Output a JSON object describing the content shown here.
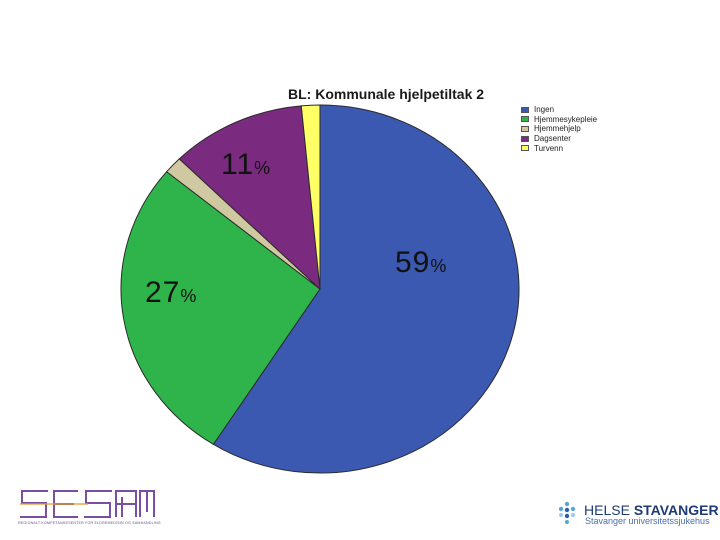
{
  "chart_data": {
    "type": "pie",
    "title": "BL: Kommunale hjelpetiltak 2",
    "categories": [
      "Ingen",
      "Hjemmesykepleie",
      "Hjemmehjelp",
      "Dagsenter",
      "Turvenn"
    ],
    "values": [
      59,
      27,
      1.5,
      11,
      1.5
    ],
    "colors": [
      "#3b59b0",
      "#2eb44a",
      "#cfc8a0",
      "#7b2b7f",
      "#ffff66"
    ],
    "data_labels": [
      {
        "category": "Ingen",
        "number": "59",
        "unit": "%"
      },
      {
        "category": "Hjemmesykepleie",
        "number": "27",
        "unit": "%"
      },
      {
        "category": "Dagsenter",
        "number": "11",
        "unit": "%"
      }
    ],
    "start_angle_deg": 0,
    "direction": "clockwise",
    "legend_position": "top-right"
  },
  "footer": {
    "left_logo": {
      "text": "SESAM",
      "color": "#7a4fa3",
      "subtitle": "REGIONALT KOMPETANSESENTER FOR ELDREMEDISIN OG SAMHANDLING"
    },
    "right_logo": {
      "name_regular": "HELSE ",
      "name_bold": "STAVANGER",
      "subtitle": "Stavanger universitetssjukehus"
    }
  }
}
